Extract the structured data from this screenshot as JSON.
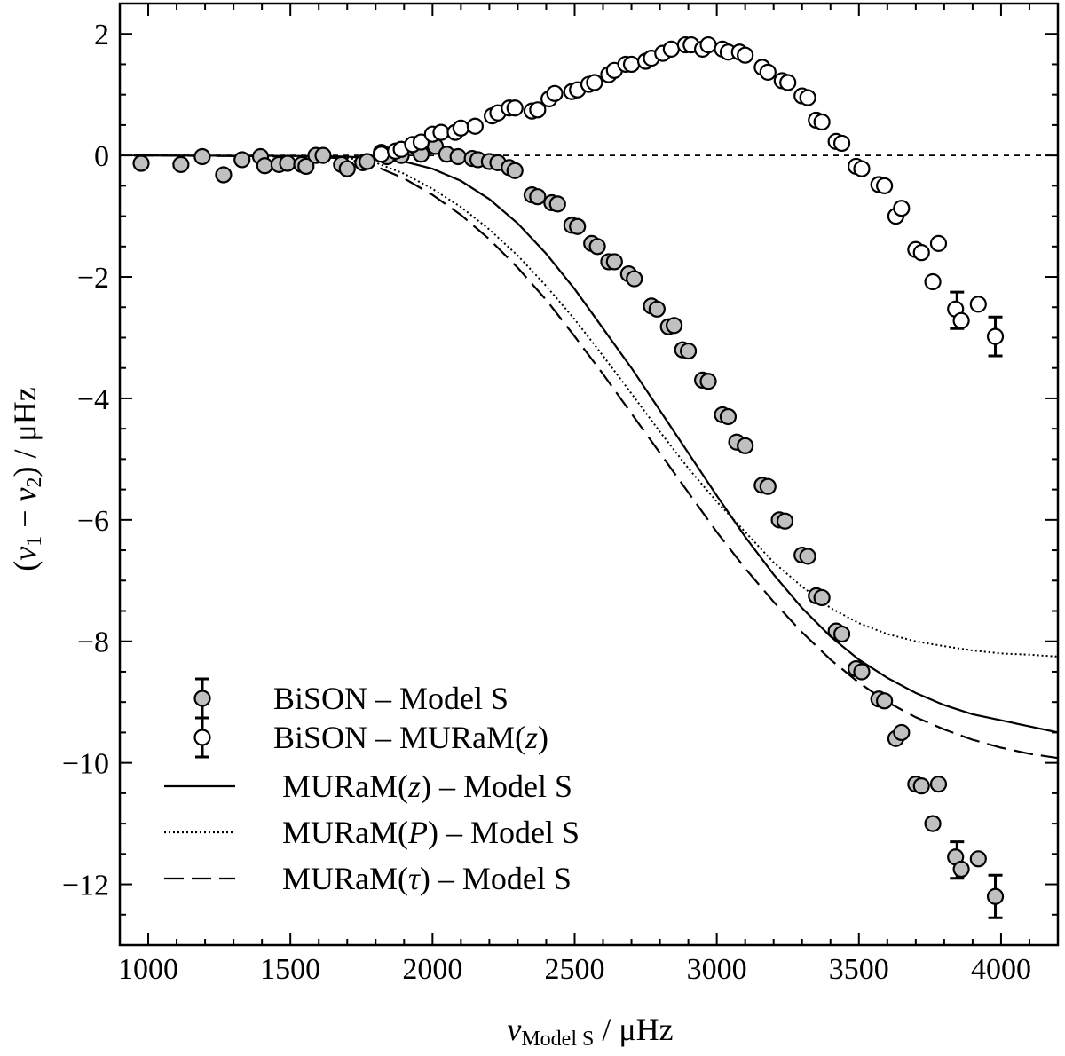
{
  "chart_data": {
    "type": "scatter",
    "xlabel": {
      "symbol": "ν",
      "subscript": "Model S",
      "unit": " / μHz"
    },
    "ylabel": {
      "open": "(",
      "sym1": "ν",
      "sub1": "1",
      "minus": " − ",
      "sym2": "ν",
      "sub2": "2",
      "close": ")",
      "unit": " / μHz"
    },
    "xlim": [
      900,
      4200
    ],
    "ylim": [
      -13,
      2.5
    ],
    "xticks_major": [
      1000,
      1500,
      2000,
      2500,
      3000,
      3500,
      4000
    ],
    "xtick_labels": [
      "1000",
      "1500",
      "2000",
      "2500",
      "3000",
      "3500",
      "4000"
    ],
    "yticks_major": [
      -12,
      -10,
      -8,
      -6,
      -4,
      -2,
      0,
      2
    ],
    "ytick_labels": [
      "−12",
      "−10",
      "−8",
      "−6",
      "−4",
      "−2",
      "0",
      "2"
    ],
    "zero_line": 0,
    "series": [
      {
        "name": "BiSON – Model S",
        "kind": "points",
        "fill": "#c0c0c0",
        "points": [
          [
            975,
            -0.13
          ],
          [
            1115,
            -0.15
          ],
          [
            1190,
            -0.02
          ],
          [
            1265,
            -0.32
          ],
          [
            1330,
            -0.07
          ],
          [
            1395,
            -0.02
          ],
          [
            1410,
            -0.17
          ],
          [
            1460,
            -0.15
          ],
          [
            1490,
            -0.13
          ],
          [
            1540,
            -0.15
          ],
          [
            1555,
            -0.18
          ],
          [
            1590,
            0.0
          ],
          [
            1615,
            0.0
          ],
          [
            1680,
            -0.15
          ],
          [
            1700,
            -0.22
          ],
          [
            1755,
            -0.12
          ],
          [
            1770,
            -0.1
          ],
          [
            1820,
            0.05
          ],
          [
            1840,
            -0.02
          ],
          [
            1870,
            0.07
          ],
          [
            1890,
            0.0
          ],
          [
            1940,
            0.15
          ],
          [
            1960,
            0.02
          ],
          [
            2010,
            0.15
          ],
          [
            2050,
            0.02
          ],
          [
            2090,
            -0.02
          ],
          [
            2140,
            -0.05
          ],
          [
            2160,
            -0.07
          ],
          [
            2200,
            -0.1
          ],
          [
            2230,
            -0.12
          ],
          [
            2270,
            -0.2
          ],
          [
            2290,
            -0.25
          ],
          [
            2350,
            -0.65
          ],
          [
            2370,
            -0.68
          ],
          [
            2420,
            -0.78
          ],
          [
            2440,
            -0.8
          ],
          [
            2490,
            -1.15
          ],
          [
            2510,
            -1.17
          ],
          [
            2560,
            -1.45
          ],
          [
            2580,
            -1.5
          ],
          [
            2620,
            -1.75
          ],
          [
            2640,
            -1.75
          ],
          [
            2690,
            -1.95
          ],
          [
            2710,
            -2.03
          ],
          [
            2770,
            -2.48
          ],
          [
            2790,
            -2.53
          ],
          [
            2830,
            -2.82
          ],
          [
            2850,
            -2.8
          ],
          [
            2880,
            -3.2
          ],
          [
            2900,
            -3.22
          ],
          [
            2950,
            -3.7
          ],
          [
            2970,
            -3.72
          ],
          [
            3020,
            -4.27
          ],
          [
            3040,
            -4.3
          ],
          [
            3070,
            -4.72
          ],
          [
            3100,
            -4.78
          ],
          [
            3160,
            -5.43
          ],
          [
            3180,
            -5.45
          ],
          [
            3220,
            -6.0
          ],
          [
            3240,
            -6.02
          ],
          [
            3300,
            -6.58
          ],
          [
            3320,
            -6.6
          ],
          [
            3350,
            -7.25
          ],
          [
            3370,
            -7.28
          ],
          [
            3420,
            -7.83
          ],
          [
            3440,
            -7.88
          ],
          [
            3490,
            -8.45
          ],
          [
            3510,
            -8.5
          ],
          [
            3570,
            -8.95
          ],
          [
            3590,
            -8.98
          ],
          [
            3630,
            -9.6
          ],
          [
            3650,
            -9.5
          ],
          [
            3700,
            -10.35
          ],
          [
            3720,
            -10.38
          ],
          [
            3760,
            -11.0
          ],
          [
            3780,
            -10.35
          ],
          [
            3840,
            -11.55
          ],
          [
            3860,
            -11.75
          ],
          [
            3920,
            -11.58
          ],
          [
            3980,
            -12.2
          ]
        ],
        "errorbars": [
          {
            "x": 3845,
            "y": -11.6,
            "err": 0.3
          },
          {
            "x": 3980,
            "y": -12.2,
            "err": 0.35
          }
        ]
      },
      {
        "name": "BiSON – MURaM(z)",
        "kind": "points",
        "fill": "#ffffff",
        "points": [
          [
            1820,
            0.02
          ],
          [
            1870,
            0.07
          ],
          [
            1890,
            0.1
          ],
          [
            1930,
            0.18
          ],
          [
            1960,
            0.22
          ],
          [
            2000,
            0.35
          ],
          [
            2030,
            0.38
          ],
          [
            2080,
            0.38
          ],
          [
            2100,
            0.45
          ],
          [
            2150,
            0.48
          ],
          [
            2210,
            0.65
          ],
          [
            2230,
            0.7
          ],
          [
            2270,
            0.78
          ],
          [
            2290,
            0.78
          ],
          [
            2350,
            0.73
          ],
          [
            2370,
            0.75
          ],
          [
            2410,
            0.93
          ],
          [
            2430,
            1.02
          ],
          [
            2490,
            1.05
          ],
          [
            2510,
            1.08
          ],
          [
            2550,
            1.17
          ],
          [
            2570,
            1.2
          ],
          [
            2620,
            1.33
          ],
          [
            2640,
            1.4
          ],
          [
            2680,
            1.5
          ],
          [
            2700,
            1.5
          ],
          [
            2750,
            1.55
          ],
          [
            2770,
            1.6
          ],
          [
            2810,
            1.68
          ],
          [
            2840,
            1.75
          ],
          [
            2890,
            1.82
          ],
          [
            2910,
            1.82
          ],
          [
            2950,
            1.75
          ],
          [
            2970,
            1.82
          ],
          [
            3020,
            1.75
          ],
          [
            3040,
            1.7
          ],
          [
            3080,
            1.7
          ],
          [
            3100,
            1.65
          ],
          [
            3160,
            1.45
          ],
          [
            3180,
            1.37
          ],
          [
            3230,
            1.23
          ],
          [
            3250,
            1.2
          ],
          [
            3300,
            0.98
          ],
          [
            3320,
            0.95
          ],
          [
            3350,
            0.58
          ],
          [
            3370,
            0.55
          ],
          [
            3420,
            0.23
          ],
          [
            3440,
            0.2
          ],
          [
            3490,
            -0.18
          ],
          [
            3510,
            -0.22
          ],
          [
            3570,
            -0.48
          ],
          [
            3590,
            -0.5
          ],
          [
            3630,
            -1.0
          ],
          [
            3650,
            -0.87
          ],
          [
            3700,
            -1.55
          ],
          [
            3720,
            -1.6
          ],
          [
            3760,
            -2.08
          ],
          [
            3780,
            -1.45
          ],
          [
            3840,
            -2.53
          ],
          [
            3860,
            -2.72
          ],
          [
            3920,
            -2.45
          ],
          [
            3980,
            -2.98
          ]
        ],
        "errorbars": [
          {
            "x": 3845,
            "y": -2.55,
            "err": 0.3
          },
          {
            "x": 3980,
            "y": -2.98,
            "err": 0.32
          }
        ]
      },
      {
        "name": "MURaM(z) – Model S",
        "kind": "line",
        "dash": "solid",
        "points": [
          [
            950,
            0
          ],
          [
            1600,
            -0.01
          ],
          [
            1700,
            -0.02
          ],
          [
            1800,
            -0.05
          ],
          [
            1900,
            -0.1
          ],
          [
            2000,
            -0.22
          ],
          [
            2100,
            -0.42
          ],
          [
            2200,
            -0.72
          ],
          [
            2300,
            -1.12
          ],
          [
            2400,
            -1.62
          ],
          [
            2500,
            -2.2
          ],
          [
            2600,
            -2.85
          ],
          [
            2700,
            -3.5
          ],
          [
            2800,
            -4.2
          ],
          [
            2900,
            -4.9
          ],
          [
            3000,
            -5.6
          ],
          [
            3100,
            -6.28
          ],
          [
            3200,
            -6.9
          ],
          [
            3300,
            -7.45
          ],
          [
            3400,
            -7.92
          ],
          [
            3500,
            -8.3
          ],
          [
            3600,
            -8.6
          ],
          [
            3700,
            -8.85
          ],
          [
            3800,
            -9.05
          ],
          [
            3900,
            -9.2
          ],
          [
            4000,
            -9.3
          ],
          [
            4100,
            -9.4
          ],
          [
            4200,
            -9.5
          ]
        ]
      },
      {
        "name": "MURaM(P) – Model S",
        "kind": "line",
        "dash": "dotted",
        "points": [
          [
            950,
            0
          ],
          [
            1600,
            -0.01
          ],
          [
            1700,
            -0.04
          ],
          [
            1800,
            -0.12
          ],
          [
            1900,
            -0.3
          ],
          [
            2000,
            -0.55
          ],
          [
            2100,
            -0.85
          ],
          [
            2200,
            -1.22
          ],
          [
            2300,
            -1.65
          ],
          [
            2400,
            -2.15
          ],
          [
            2500,
            -2.7
          ],
          [
            2600,
            -3.3
          ],
          [
            2700,
            -3.92
          ],
          [
            2800,
            -4.55
          ],
          [
            2900,
            -5.15
          ],
          [
            3000,
            -5.7
          ],
          [
            3100,
            -6.2
          ],
          [
            3200,
            -6.7
          ],
          [
            3300,
            -7.1
          ],
          [
            3400,
            -7.45
          ],
          [
            3500,
            -7.7
          ],
          [
            3600,
            -7.88
          ],
          [
            3700,
            -8.0
          ],
          [
            3800,
            -8.08
          ],
          [
            3900,
            -8.15
          ],
          [
            4000,
            -8.2
          ],
          [
            4100,
            -8.22
          ],
          [
            4200,
            -8.25
          ]
        ]
      },
      {
        "name": "MURaM(τ) – Model S",
        "kind": "line",
        "dash": "dashed",
        "points": [
          [
            950,
            0
          ],
          [
            1600,
            -0.02
          ],
          [
            1700,
            -0.06
          ],
          [
            1800,
            -0.18
          ],
          [
            1900,
            -0.38
          ],
          [
            2000,
            -0.65
          ],
          [
            2100,
            -0.98
          ],
          [
            2200,
            -1.38
          ],
          [
            2300,
            -1.85
          ],
          [
            2400,
            -2.38
          ],
          [
            2500,
            -2.98
          ],
          [
            2600,
            -3.6
          ],
          [
            2700,
            -4.25
          ],
          [
            2800,
            -4.9
          ],
          [
            2900,
            -5.55
          ],
          [
            3000,
            -6.2
          ],
          [
            3100,
            -6.8
          ],
          [
            3200,
            -7.35
          ],
          [
            3300,
            -7.85
          ],
          [
            3400,
            -8.3
          ],
          [
            3500,
            -8.68
          ],
          [
            3600,
            -9.0
          ],
          [
            3700,
            -9.25
          ],
          [
            3800,
            -9.45
          ],
          [
            3900,
            -9.62
          ],
          [
            4000,
            -9.75
          ],
          [
            4100,
            -9.85
          ],
          [
            4200,
            -9.92
          ]
        ]
      }
    ],
    "legend": {
      "placement": "bottom-left",
      "entries": [
        {
          "key": "points",
          "fill": "#c0c0c0",
          "parts": [
            {
              "t": "BiSON – Model S"
            }
          ]
        },
        {
          "key": "points",
          "fill": "#ffffff",
          "parts": [
            {
              "t": "BiSON – MURaM("
            },
            {
              "t": "z",
              "i": true
            },
            {
              "t": ")"
            }
          ]
        },
        {
          "key": "line",
          "dash": "solid",
          "parts": [
            {
              "t": "MURaM("
            },
            {
              "t": "z",
              "i": true
            },
            {
              "t": ") – Model S"
            }
          ]
        },
        {
          "key": "line",
          "dash": "dotted",
          "parts": [
            {
              "t": "MURaM("
            },
            {
              "t": "P",
              "i": true
            },
            {
              "t": ") – Model S"
            }
          ]
        },
        {
          "key": "line",
          "dash": "dashed",
          "parts": [
            {
              "t": "MURaM("
            },
            {
              "t": "τ",
              "i": true
            },
            {
              "t": ") – Model S"
            }
          ]
        }
      ]
    }
  }
}
